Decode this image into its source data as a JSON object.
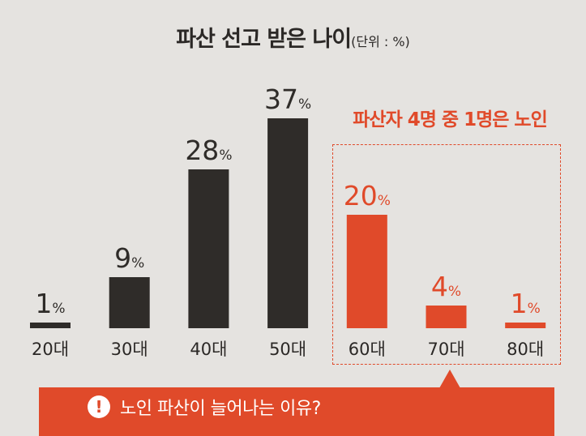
{
  "title": "파산 선고 받은 나이",
  "unit_label": "(단위 : %)",
  "highlight_label": "파산자 4명 중 1명은 노인",
  "callout": {
    "icon": "exclamation-icon",
    "text": "노인 파산이 늘어나는 이유?"
  },
  "colors": {
    "dark_bar": "#2f2c29",
    "accent": "#e04a2a",
    "background": "#e5e3e0"
  },
  "chart_data": {
    "type": "bar",
    "categories": [
      "20대",
      "30대",
      "40대",
      "50대",
      "60대",
      "70대",
      "80대"
    ],
    "values": [
      1,
      9,
      28,
      37,
      20,
      4,
      1
    ],
    "unit": "%",
    "highlighted": [
      "60대",
      "70대",
      "80대"
    ],
    "title": "파산 선고 받은 나이",
    "ylim": [
      0,
      40
    ]
  }
}
